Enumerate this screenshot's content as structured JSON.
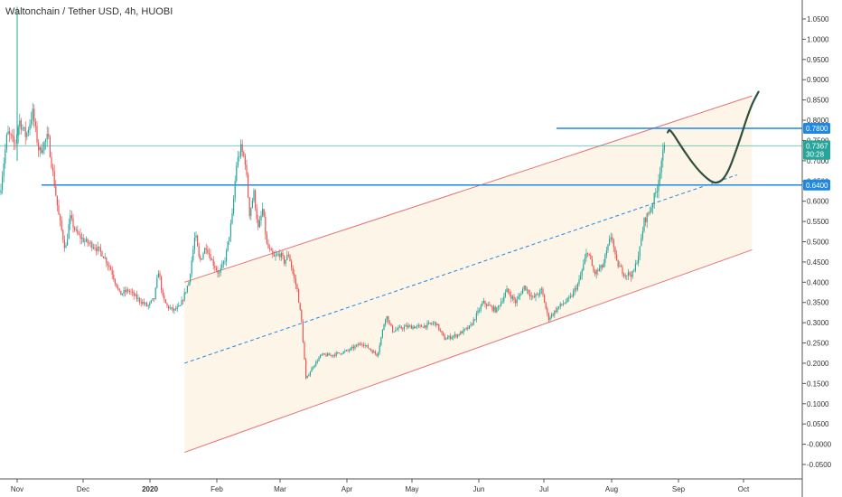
{
  "chart_title": "Waltonchain / Tether USD, 4h, HUOBI",
  "colors": {
    "up": "#26a69a",
    "down": "#ef5350",
    "channel": "#e57373",
    "channel_fill": "#fdf6e8",
    "hline": "#1e88e5",
    "current_line": "#26a69a",
    "forecast": "#2f4f3f",
    "midline": "#1e88e5"
  },
  "chart_data": {
    "type": "candlestick",
    "title": "Waltonchain / Tether USD, 4h, HUOBI",
    "x_tick_labels": [
      "Nov",
      "Dec",
      "2020",
      "Feb",
      "Mar",
      "Apr",
      "May",
      "Jun",
      "Jul",
      "Aug",
      "Sep",
      "Oct"
    ],
    "y_tick_labels": [
      "1.0500",
      "1.0000",
      "0.9500",
      "0.9000",
      "0.8500",
      "0.8000",
      "0.7500",
      "0.7000",
      "0.6500",
      "0.6000",
      "0.5500",
      "0.5000",
      "0.4500",
      "0.4000",
      "0.3500",
      "0.3000",
      "0.2500",
      "0.2000",
      "0.1500",
      "0.1000",
      "0.0500",
      "-0.0000",
      "-0.0500"
    ],
    "y_range": [
      -0.075,
      1.08
    ],
    "x_range": [
      "2019-10-25",
      "2020-10-20"
    ],
    "price_path": [
      [
        "2019-10-25",
        0.62
      ],
      [
        "2019-10-28",
        0.77
      ],
      [
        "2019-10-31",
        0.74
      ],
      [
        "2019-11-02",
        0.8
      ],
      [
        "2019-11-05",
        0.76
      ],
      [
        "2019-11-08",
        0.82
      ],
      [
        "2019-11-11",
        0.72
      ],
      [
        "2019-11-15",
        0.76
      ],
      [
        "2019-11-18",
        0.64
      ],
      [
        "2019-11-20",
        0.56
      ],
      [
        "2019-11-23",
        0.48
      ],
      [
        "2019-11-25",
        0.56
      ],
      [
        "2019-11-28",
        0.52
      ],
      [
        "2019-12-02",
        0.5
      ],
      [
        "2019-12-06",
        0.49
      ],
      [
        "2019-12-10",
        0.47
      ],
      [
        "2019-12-14",
        0.43
      ],
      [
        "2019-12-18",
        0.37
      ],
      [
        "2019-12-22",
        0.38
      ],
      [
        "2019-12-26",
        0.36
      ],
      [
        "2019-12-31",
        0.34
      ],
      [
        "2020-01-03",
        0.36
      ],
      [
        "2020-01-05",
        0.43
      ],
      [
        "2020-01-07",
        0.36
      ],
      [
        "2020-01-09",
        0.34
      ],
      [
        "2020-01-12",
        0.33
      ],
      [
        "2020-01-15",
        0.34
      ],
      [
        "2020-01-17",
        0.37
      ],
      [
        "2020-01-19",
        0.4
      ],
      [
        "2020-01-22",
        0.52
      ],
      [
        "2020-01-24",
        0.45
      ],
      [
        "2020-01-27",
        0.49
      ],
      [
        "2020-01-30",
        0.45
      ],
      [
        "2020-02-02",
        0.42
      ],
      [
        "2020-02-05",
        0.46
      ],
      [
        "2020-02-08",
        0.56
      ],
      [
        "2020-02-10",
        0.69
      ],
      [
        "2020-02-12",
        0.73
      ],
      [
        "2020-02-14",
        0.7
      ],
      [
        "2020-02-16",
        0.57
      ],
      [
        "2020-02-18",
        0.62
      ],
      [
        "2020-02-20",
        0.53
      ],
      [
        "2020-02-22",
        0.58
      ],
      [
        "2020-02-24",
        0.49
      ],
      [
        "2020-02-27",
        0.46
      ],
      [
        "2020-03-01",
        0.47
      ],
      [
        "2020-03-03",
        0.45
      ],
      [
        "2020-03-05",
        0.47
      ],
      [
        "2020-03-07",
        0.42
      ],
      [
        "2020-03-09",
        0.38
      ],
      [
        "2020-03-11",
        0.3
      ],
      [
        "2020-03-13",
        0.16
      ],
      [
        "2020-03-16",
        0.19
      ],
      [
        "2020-03-20",
        0.22
      ],
      [
        "2020-03-25",
        0.22
      ],
      [
        "2020-04-01",
        0.23
      ],
      [
        "2020-04-08",
        0.25
      ],
      [
        "2020-04-15",
        0.22
      ],
      [
        "2020-04-19",
        0.32
      ],
      [
        "2020-04-22",
        0.28
      ],
      [
        "2020-04-28",
        0.29
      ],
      [
        "2020-05-05",
        0.29
      ],
      [
        "2020-05-12",
        0.3
      ],
      [
        "2020-05-16",
        0.26
      ],
      [
        "2020-05-22",
        0.27
      ],
      [
        "2020-05-28",
        0.29
      ],
      [
        "2020-06-03",
        0.35
      ],
      [
        "2020-06-09",
        0.33
      ],
      [
        "2020-06-14",
        0.38
      ],
      [
        "2020-06-18",
        0.35
      ],
      [
        "2020-06-22",
        0.39
      ],
      [
        "2020-06-26",
        0.36
      ],
      [
        "2020-06-30",
        0.38
      ],
      [
        "2020-07-03",
        0.31
      ],
      [
        "2020-07-08",
        0.34
      ],
      [
        "2020-07-13",
        0.36
      ],
      [
        "2020-07-17",
        0.4
      ],
      [
        "2020-07-21",
        0.48
      ],
      [
        "2020-07-24",
        0.42
      ],
      [
        "2020-07-28",
        0.44
      ],
      [
        "2020-08-01",
        0.52
      ],
      [
        "2020-08-03",
        0.45
      ],
      [
        "2020-08-07",
        0.42
      ],
      [
        "2020-08-11",
        0.42
      ],
      [
        "2020-08-14",
        0.48
      ],
      [
        "2020-08-16",
        0.55
      ],
      [
        "2020-08-19",
        0.58
      ],
      [
        "2020-08-22",
        0.63
      ],
      [
        "2020-08-24",
        0.7
      ],
      [
        "2020-08-26",
        0.74
      ]
    ],
    "lines": {
      "channel_upper": [
        [
          "2020-01-17",
          0.4
        ],
        [
          "2020-10-05",
          0.86
        ]
      ],
      "channel_lower": [
        [
          "2020-01-17",
          -0.02
        ],
        [
          "2020-10-05",
          0.48
        ]
      ],
      "channel_mid": [
        [
          "2020-01-17",
          0.2
        ],
        [
          "2020-10-05",
          0.67
        ]
      ],
      "hline_upper": 0.78,
      "hline_lower": 0.64,
      "current_price_line": 0.7367,
      "forecast": [
        [
          "2020-08-27",
          0.77
        ],
        [
          "2020-08-28",
          0.78
        ],
        [
          "2020-09-04",
          0.72
        ],
        [
          "2020-09-11",
          0.67
        ],
        [
          "2020-09-18",
          0.64
        ],
        [
          "2020-09-23",
          0.66
        ],
        [
          "2020-09-28",
          0.73
        ],
        [
          "2020-10-04",
          0.83
        ],
        [
          "2020-10-08",
          0.87
        ]
      ]
    },
    "price_badges": [
      {
        "label": "0.7800",
        "price": 0.78,
        "color": "#1e88e5"
      },
      {
        "label": "0.7367",
        "price": 0.7367,
        "color": "#26a69a"
      },
      {
        "label": "30:28",
        "price": 0.716,
        "color": "#26a69a"
      },
      {
        "label": "0.6400",
        "price": 0.64,
        "color": "#1e88e5"
      }
    ],
    "grid": false
  }
}
